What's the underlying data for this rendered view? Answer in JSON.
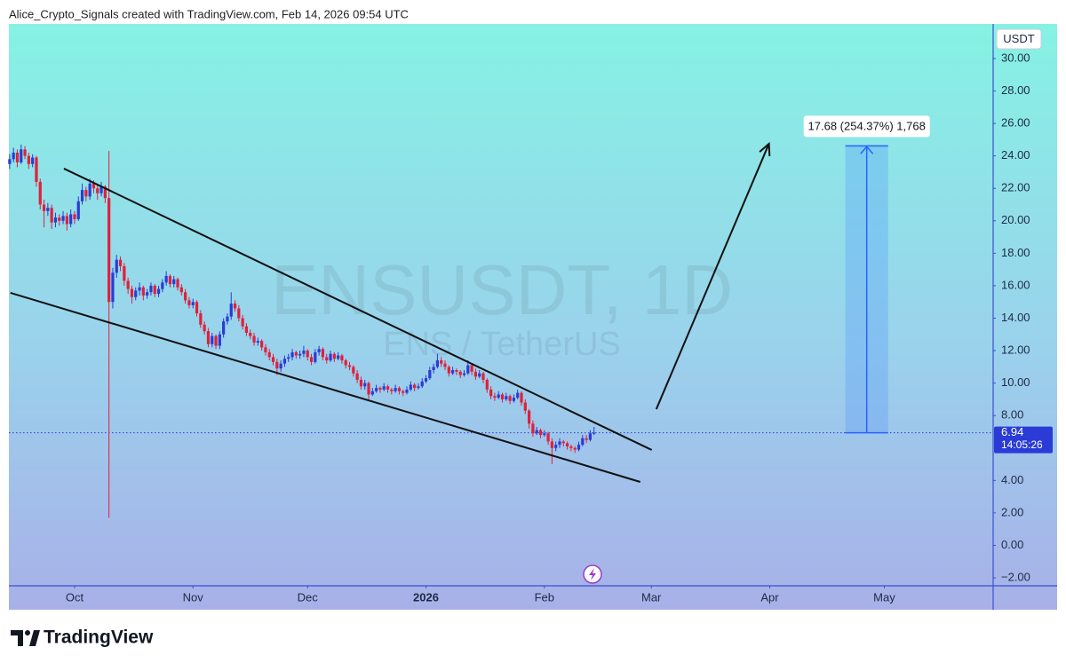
{
  "chart_data": {
    "type": "candlestick",
    "header": "Alice_Crypto_Signals created with TradingView.com, Feb 14, 2026 09:54 UTC",
    "title": "ENSUSDT, 1D",
    "subtitle": "ENS / TetherUS",
    "currency": "USDT",
    "brand": "TradingView",
    "up_color": "#2a3bd6",
    "down_color": "#e0203a",
    "xlim": [
      -0.2,
      257.5
    ],
    "xticks": [
      {
        "value": 17,
        "label": "Oct"
      },
      {
        "value": 48,
        "label": "Nov"
      },
      {
        "value": 78,
        "label": "Dec"
      },
      {
        "value": 109,
        "label": "2026"
      },
      {
        "value": 140,
        "label": "Feb"
      },
      {
        "value": 168,
        "label": "Mar"
      },
      {
        "value": 199,
        "label": "Apr"
      },
      {
        "value": 229,
        "label": "May"
      }
    ],
    "ylim": [
      -2.49,
      32.13
    ],
    "yticks": [
      {
        "value": -2,
        "label": "−2.00"
      },
      {
        "value": 0,
        "label": "0.00"
      },
      {
        "value": 2,
        "label": "2.00"
      },
      {
        "value": 4,
        "label": "4.00"
      },
      {
        "value": 8,
        "label": "8.00"
      },
      {
        "value": 10,
        "label": "10.00"
      },
      {
        "value": 12,
        "label": "12.00"
      },
      {
        "value": 14,
        "label": "14.00"
      },
      {
        "value": 16,
        "label": "16.00"
      },
      {
        "value": 18,
        "label": "18.00"
      },
      {
        "value": 20,
        "label": "20.00"
      },
      {
        "value": 22,
        "label": "22.00"
      },
      {
        "value": 24,
        "label": "24.00"
      },
      {
        "value": 26,
        "label": "26.00"
      },
      {
        "value": 28,
        "label": "28.00"
      },
      {
        "value": 30,
        "label": "30.00"
      }
    ],
    "grid": false,
    "last_price": 6.94,
    "countdown": "14:05:26",
    "candles": [
      [
        23.5,
        24.1,
        23.2,
        23.8
      ],
      [
        23.8,
        24.5,
        23.6,
        24.2
      ],
      [
        24.2,
        24.4,
        23.3,
        23.6
      ],
      [
        23.6,
        24.7,
        23.5,
        24.4
      ],
      [
        24.4,
        24.6,
        23.8,
        24.0
      ],
      [
        24.0,
        24.2,
        23.2,
        23.5
      ],
      [
        23.5,
        24.1,
        23.3,
        23.9
      ],
      [
        23.9,
        24.0,
        22.1,
        22.4
      ],
      [
        22.4,
        22.6,
        20.7,
        21.0
      ],
      [
        21.0,
        21.3,
        19.6,
        20.6
      ],
      [
        20.6,
        21.1,
        20.3,
        20.8
      ],
      [
        20.8,
        21.0,
        19.5,
        19.9
      ],
      [
        19.9,
        20.5,
        19.6,
        20.2
      ],
      [
        20.2,
        20.4,
        19.7,
        20.0
      ],
      [
        20.0,
        20.6,
        19.8,
        20.3
      ],
      [
        20.3,
        20.5,
        19.4,
        19.8
      ],
      [
        19.8,
        20.7,
        19.6,
        20.4
      ],
      [
        20.4,
        20.6,
        19.8,
        20.1
      ],
      [
        20.1,
        21.5,
        20.0,
        21.2
      ],
      [
        21.2,
        22.3,
        21.0,
        21.9
      ],
      [
        21.9,
        22.1,
        21.2,
        21.5
      ],
      [
        21.5,
        22.6,
        21.3,
        22.3
      ],
      [
        22.3,
        22.5,
        21.7,
        22.0
      ],
      [
        22.0,
        22.2,
        21.3,
        21.7
      ],
      [
        21.7,
        22.4,
        21.5,
        22.1
      ],
      [
        22.1,
        22.2,
        21.1,
        21.4
      ],
      [
        21.4,
        24.3,
        1.7,
        15.0
      ],
      [
        15.0,
        17.1,
        14.6,
        16.8
      ],
      [
        16.8,
        17.9,
        16.5,
        17.6
      ],
      [
        17.6,
        17.8,
        16.9,
        17.2
      ],
      [
        17.2,
        17.4,
        16.0,
        16.3
      ],
      [
        16.3,
        16.5,
        15.5,
        15.8
      ],
      [
        15.8,
        16.0,
        14.9,
        15.3
      ],
      [
        15.3,
        15.9,
        15.1,
        15.7
      ],
      [
        15.7,
        16.2,
        15.4,
        15.9
      ],
      [
        15.9,
        16.0,
        15.1,
        15.4
      ],
      [
        15.4,
        15.8,
        15.2,
        15.6
      ],
      [
        15.6,
        16.2,
        15.4,
        16.0
      ],
      [
        16.0,
        16.1,
        15.3,
        15.5
      ],
      [
        15.5,
        16.0,
        15.3,
        15.8
      ],
      [
        15.8,
        16.4,
        15.6,
        16.2
      ],
      [
        16.2,
        16.9,
        16.0,
        16.6
      ],
      [
        16.6,
        16.7,
        15.9,
        16.1
      ],
      [
        16.1,
        16.6,
        15.9,
        16.4
      ],
      [
        16.4,
        16.5,
        15.7,
        15.9
      ],
      [
        15.9,
        16.1,
        15.4,
        15.6
      ],
      [
        15.6,
        15.8,
        14.9,
        15.1
      ],
      [
        15.1,
        15.3,
        14.6,
        14.8
      ],
      [
        14.8,
        15.2,
        14.6,
        15.0
      ],
      [
        15.0,
        15.1,
        14.1,
        14.3
      ],
      [
        14.3,
        14.5,
        13.4,
        13.6
      ],
      [
        13.6,
        13.8,
        13.0,
        13.2
      ],
      [
        13.2,
        13.4,
        12.2,
        12.4
      ],
      [
        12.4,
        13.1,
        12.2,
        12.9
      ],
      [
        12.9,
        13.0,
        12.1,
        12.3
      ],
      [
        12.3,
        13.2,
        12.1,
        13.0
      ],
      [
        13.0,
        14.0,
        12.8,
        13.8
      ],
      [
        13.8,
        14.3,
        13.6,
        14.1
      ],
      [
        14.1,
        15.6,
        13.9,
        14.9
      ],
      [
        14.9,
        15.1,
        14.4,
        14.6
      ],
      [
        14.6,
        14.8,
        13.8,
        14.0
      ],
      [
        14.0,
        14.2,
        13.3,
        13.5
      ],
      [
        13.5,
        13.7,
        12.9,
        13.1
      ],
      [
        13.1,
        13.3,
        12.7,
        12.9
      ],
      [
        12.9,
        13.1,
        12.3,
        12.5
      ],
      [
        12.5,
        12.8,
        12.3,
        12.6
      ],
      [
        12.6,
        12.7,
        12.0,
        12.2
      ],
      [
        12.2,
        12.4,
        11.7,
        11.9
      ],
      [
        11.9,
        12.1,
        11.4,
        11.6
      ],
      [
        11.6,
        11.8,
        11.1,
        11.3
      ],
      [
        11.3,
        11.5,
        10.5,
        10.9
      ],
      [
        10.9,
        11.4,
        10.7,
        11.2
      ],
      [
        11.2,
        11.7,
        11.0,
        11.5
      ],
      [
        11.5,
        11.8,
        11.3,
        11.6
      ],
      [
        11.6,
        12.1,
        11.4,
        11.9
      ],
      [
        11.9,
        12.0,
        11.5,
        11.7
      ],
      [
        11.7,
        12.0,
        11.5,
        11.8
      ],
      [
        11.8,
        12.3,
        11.6,
        12.0
      ],
      [
        12.0,
        12.1,
        11.4,
        11.6
      ],
      [
        11.6,
        11.8,
        11.1,
        11.3
      ],
      [
        11.3,
        12.1,
        11.2,
        11.9
      ],
      [
        11.9,
        12.3,
        11.7,
        12.1
      ],
      [
        12.1,
        12.2,
        11.4,
        11.6
      ],
      [
        11.6,
        11.8,
        11.2,
        11.4
      ],
      [
        11.4,
        12.0,
        11.3,
        11.8
      ],
      [
        11.8,
        11.9,
        11.3,
        11.5
      ],
      [
        11.5,
        11.9,
        11.4,
        11.7
      ],
      [
        11.7,
        11.8,
        11.2,
        11.4
      ],
      [
        11.4,
        11.5,
        10.9,
        11.1
      ],
      [
        11.1,
        11.3,
        10.8,
        11.0
      ],
      [
        11.0,
        11.1,
        10.4,
        10.6
      ],
      [
        10.6,
        10.8,
        10.0,
        10.2
      ],
      [
        10.2,
        10.4,
        9.6,
        9.8
      ],
      [
        9.8,
        10.2,
        9.6,
        10.0
      ],
      [
        10.0,
        10.1,
        9.0,
        9.3
      ],
      [
        9.3,
        9.7,
        9.2,
        9.5
      ],
      [
        9.5,
        9.9,
        9.4,
        9.7
      ],
      [
        9.7,
        9.8,
        9.4,
        9.6
      ],
      [
        9.6,
        10.0,
        9.5,
        9.8
      ],
      [
        9.8,
        9.9,
        9.4,
        9.6
      ],
      [
        9.6,
        9.7,
        9.3,
        9.5
      ],
      [
        9.5,
        9.9,
        9.4,
        9.7
      ],
      [
        9.7,
        9.8,
        9.3,
        9.5
      ],
      [
        9.5,
        9.6,
        9.2,
        9.4
      ],
      [
        9.4,
        9.8,
        9.3,
        9.6
      ],
      [
        9.6,
        10.1,
        9.5,
        9.9
      ],
      [
        9.9,
        10.0,
        9.5,
        9.7
      ],
      [
        9.7,
        10.0,
        9.6,
        9.8
      ],
      [
        9.8,
        10.3,
        9.7,
        10.1
      ],
      [
        10.1,
        10.5,
        10.0,
        10.3
      ],
      [
        10.3,
        11.0,
        10.2,
        10.8
      ],
      [
        10.8,
        11.2,
        10.6,
        11.0
      ],
      [
        11.0,
        11.8,
        10.9,
        11.4
      ],
      [
        11.4,
        11.6,
        11.0,
        11.2
      ],
      [
        11.2,
        11.4,
        10.8,
        11.0
      ],
      [
        11.0,
        11.1,
        10.4,
        10.6
      ],
      [
        10.6,
        11.0,
        10.5,
        10.8
      ],
      [
        10.8,
        10.9,
        10.5,
        10.7
      ],
      [
        10.7,
        10.8,
        10.3,
        10.5
      ],
      [
        10.5,
        10.8,
        10.4,
        10.6
      ],
      [
        10.6,
        11.4,
        10.5,
        11.1
      ],
      [
        11.1,
        11.2,
        10.5,
        10.7
      ],
      [
        10.7,
        10.9,
        10.2,
        10.4
      ],
      [
        10.4,
        10.8,
        10.3,
        10.6
      ],
      [
        10.6,
        10.7,
        10.0,
        10.2
      ],
      [
        10.2,
        10.3,
        9.4,
        9.6
      ],
      [
        9.6,
        9.8,
        9.0,
        9.2
      ],
      [
        9.2,
        9.4,
        8.9,
        9.1
      ],
      [
        9.1,
        9.5,
        9.0,
        9.3
      ],
      [
        9.3,
        9.4,
        8.8,
        9.0
      ],
      [
        9.0,
        9.4,
        8.9,
        9.2
      ],
      [
        9.2,
        9.3,
        8.7,
        8.9
      ],
      [
        8.9,
        9.3,
        8.8,
        9.1
      ],
      [
        9.1,
        9.6,
        9.0,
        9.4
      ],
      [
        9.4,
        9.5,
        8.6,
        8.8
      ],
      [
        8.8,
        9.0,
        8.1,
        8.3
      ],
      [
        8.3,
        8.4,
        7.2,
        7.5
      ],
      [
        7.5,
        7.7,
        6.7,
        6.9
      ],
      [
        6.9,
        7.3,
        6.8,
        7.1
      ],
      [
        7.1,
        7.2,
        6.6,
        6.8
      ],
      [
        6.8,
        7.1,
        6.7,
        6.9
      ],
      [
        6.9,
        7.0,
        6.2,
        6.4
      ],
      [
        6.4,
        6.6,
        5.0,
        6.0
      ],
      [
        6.0,
        6.4,
        5.8,
        6.2
      ],
      [
        6.2,
        6.6,
        6.0,
        6.4
      ],
      [
        6.4,
        6.5,
        6.1,
        6.3
      ],
      [
        6.3,
        6.4,
        5.9,
        6.1
      ],
      [
        6.1,
        6.2,
        5.8,
        6.0
      ],
      [
        6.0,
        6.1,
        5.7,
        5.9
      ],
      [
        5.9,
        6.4,
        5.8,
        6.2
      ],
      [
        6.2,
        6.8,
        6.1,
        6.6
      ],
      [
        6.6,
        6.8,
        6.3,
        6.5
      ],
      [
        6.5,
        7.1,
        6.4,
        6.9
      ],
      [
        6.9,
        7.3,
        6.8,
        6.94
      ]
    ],
    "trendlines": [
      {
        "x": [
          14.2,
          168.1
        ],
        "y": [
          23.22,
          5.88
        ]
      },
      {
        "x": [
          0.2,
          165.1
        ],
        "y": [
          15.56,
          3.91
        ]
      }
    ],
    "arrow": {
      "x": [
        169.3,
        198.8
      ],
      "y": [
        8.39,
        24.75
      ]
    },
    "measure": {
      "x": [
        218.8,
        230.0
      ],
      "y": [
        6.94,
        24.62
      ],
      "label": "17.68 (254.37%) 1,768"
    }
  }
}
